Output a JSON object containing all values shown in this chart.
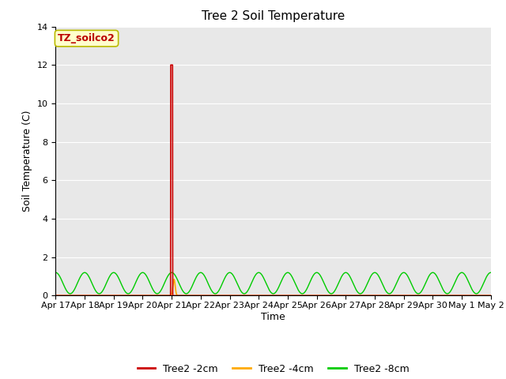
{
  "title": "Tree 2 Soil Temperature",
  "ylabel": "Soil Temperature (C)",
  "xlabel": "Time",
  "ylim": [
    0,
    14
  ],
  "yticks": [
    0,
    2,
    4,
    6,
    8,
    10,
    12,
    14
  ],
  "xtick_labels": [
    "Apr 17",
    "Apr 18",
    "Apr 19",
    "Apr 20",
    "Apr 21",
    "Apr 22",
    "Apr 23",
    "Apr 24",
    "Apr 25",
    "Apr 26",
    "Apr 27",
    "Apr 28",
    "Apr 29",
    "Apr 30",
    "May 1",
    "May 2"
  ],
  "annotation_text": "TZ_soilco2",
  "annotation_color": "#bb0000",
  "annotation_bg": "#ffffcc",
  "line_red_color": "#cc0000",
  "line_orange_color": "#ffaa00",
  "line_green_color": "#00cc00",
  "legend_labels": [
    "Tree2 -2cm",
    "Tree2 -4cm",
    "Tree2 -8cm"
  ],
  "bg_color": "#e8e8e8",
  "fig_bg_color": "#ffffff",
  "title_fontsize": 11,
  "axis_fontsize": 9,
  "tick_fontsize": 8
}
